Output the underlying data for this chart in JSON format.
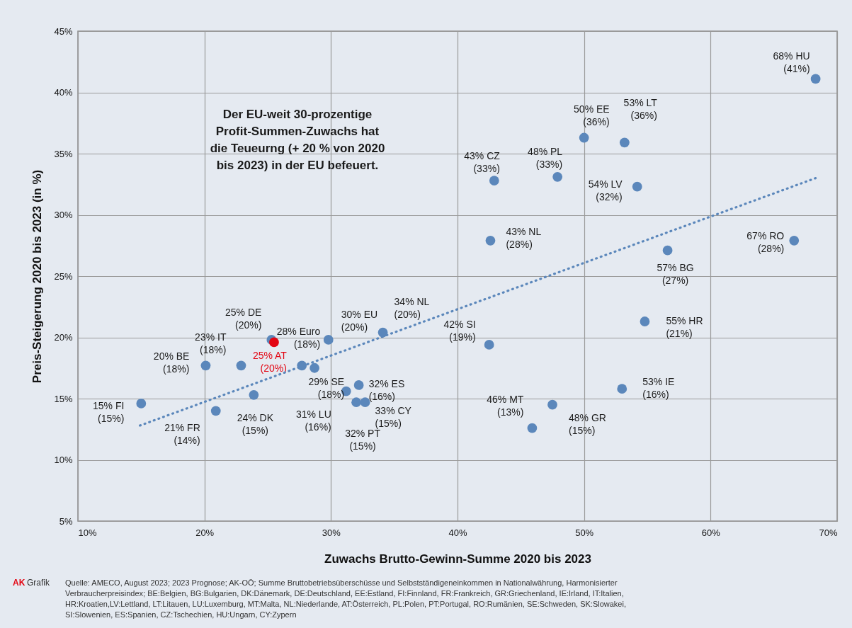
{
  "chart_data": {
    "type": "scatter",
    "xlabel": "Zuwachs Brutto-Gewinn-Summe 2020 bis 2023",
    "ylabel": "Preis-Steigerung 2020 bis 2023 (in %)",
    "xlim": [
      10,
      70
    ],
    "xticks": [
      {
        "value": 10,
        "label": "10%"
      },
      {
        "value": 20,
        "label": "20%"
      },
      {
        "value": 30,
        "label": "30%"
      },
      {
        "value": 40,
        "label": "40%"
      },
      {
        "value": 50,
        "label": "50%"
      },
      {
        "value": 60,
        "label": "60%"
      },
      {
        "value": 70,
        "label": "70%"
      }
    ],
    "ylim": [
      5,
      45
    ],
    "yticks": [
      {
        "value": 5,
        "label": "5%"
      },
      {
        "value": 10,
        "label": "10%"
      },
      {
        "value": 15,
        "label": "15%"
      },
      {
        "value": 20,
        "label": "20%"
      },
      {
        "value": 25,
        "label": "25%"
      },
      {
        "value": 30,
        "label": "30%"
      },
      {
        "value": 35,
        "label": "35%"
      },
      {
        "value": 40,
        "label": "40%"
      },
      {
        "value": 45,
        "label": "45%"
      }
    ],
    "grid": true,
    "marker": "circle",
    "series": [
      {
        "type": "scatter",
        "x": [
          68.3,
          50.0,
          53.2,
          42.9,
          47.9,
          54.2,
          42.6,
          66.6,
          56.6,
          54.8,
          42.5,
          53.0,
          45.9,
          47.5,
          25.3,
          25.5,
          22.9,
          20.1,
          27.7,
          29.8,
          28.7,
          34.1,
          15.0,
          20.9,
          23.9,
          31.2,
          32.2,
          32.0,
          32.7
        ],
        "values": [
          41.1,
          36.3,
          35.9,
          32.8,
          33.1,
          32.3,
          27.9,
          27.9,
          27.1,
          21.3,
          19.4,
          15.8,
          12.6,
          14.5,
          19.8,
          19.6,
          17.7,
          17.7,
          17.7,
          19.8,
          17.5,
          20.4,
          14.6,
          14.0,
          15.3,
          15.6,
          16.1,
          14.7,
          14.7
        ],
        "colors": [
          "#5b87bb",
          "#5b87bb",
          "#5b87bb",
          "#5b87bb",
          "#5b87bb",
          "#5b87bb",
          "#5b87bb",
          "#5b87bb",
          "#5b87bb",
          "#5b87bb",
          "#5b87bb",
          "#5b87bb",
          "#5b87bb",
          "#5b87bb",
          "#5b87bb",
          "#e30613",
          "#5b87bb",
          "#5b87bb",
          "#5b87bb",
          "#5b87bb",
          "#5b87bb",
          "#5b87bb",
          "#5b87bb",
          "#5b87bb",
          "#5b87bb",
          "#5b87bb",
          "#5b87bb",
          "#5b87bb",
          "#5b87bb"
        ],
        "value_labels": [
          "68% HU (41%)",
          "50% EE (36%)",
          "53% LT (36%)",
          "43% CZ (33%)",
          "48% PL (33%)",
          "54% LV (32%)",
          "43% NL (28%)",
          "67% RO (28%)",
          "57% BG (27%)",
          "55% HR (21%)",
          "42% SI (19%)",
          "53% IE (16%)",
          "46% MT (13%)",
          "48% GR (15%)",
          "25% DE (20%)",
          "25% AT (20%)",
          "23% IT (18%)",
          "20% BE (18%)",
          "28% Euro (18%)",
          "30% EU (20%)",
          "29% SE (18%)",
          "34% NL (20%)",
          "15% FI (15%)",
          "21% FR (14%)",
          "24% DK (15%)",
          "31% LU (16%)",
          "32% ES (16%)",
          "32% PT (15%)",
          "33% CY (15%)"
        ]
      },
      {
        "type": "line",
        "x": [
          14.9,
          68.3
        ],
        "values": [
          12.8,
          33.0
        ],
        "color": "#5b87bb",
        "line_style": "dotted",
        "marker": "none"
      }
    ],
    "annotations": [
      "Der EU-weit 30-prozentige\nProfit-Summen-Zuwachs hat\ndie Teueurng (+ 20 % von 2020\nbis 2023) in der EU  befeuert.",
      "AK",
      "Grafik",
      "Quelle: AMECO, August 2023; 2023 Prognose; AK-OÖ; Summe Bruttobetriebsüberschüsse und Selbstständigeneinkommen in Nationalwährung, Harmonisierter\nVerbraucherpreisindex; BE:Belgien, BG:Bulgarien, DK:Dänemark, DE:Deutschland, EE:Estland, FI:Finnland, FR:Frankreich, GR:Griechenland, IE:Irland, IT:Italien,\nHR:Kroatien,LV:Lettland, LT:Litauen, LU:Luxemburg, MT:Malta, NL:Niederlande, AT:Österreich, PL:Polen, PT:Portugal, RO:Rumänien, SE:Schweden, SK:Slowakei,\nSI:Slowenien, ES:Spanien, CZ:Tschechien, HU:Ungarn, CY:Zypern"
    ]
  }
}
